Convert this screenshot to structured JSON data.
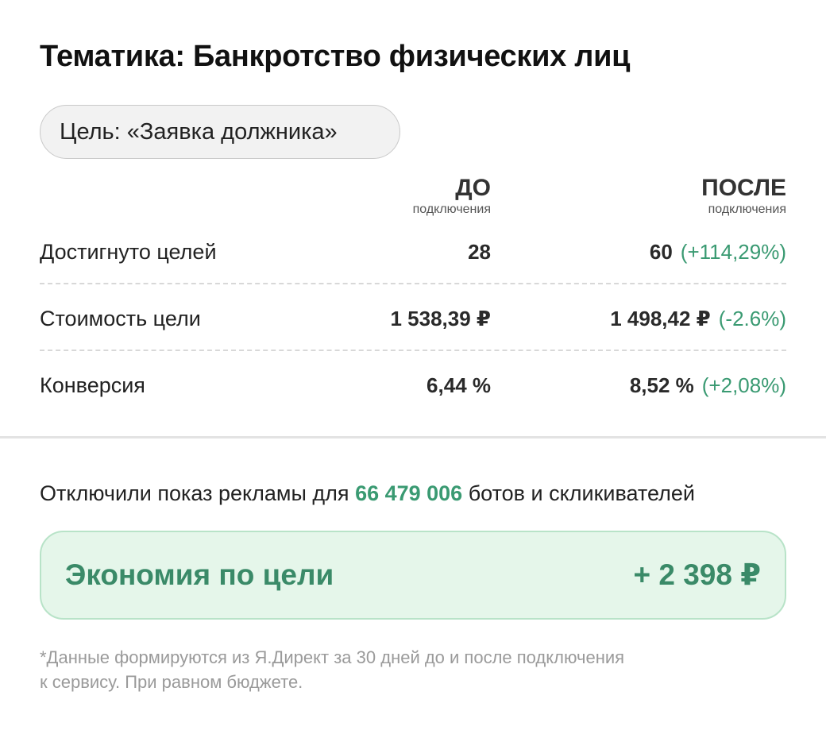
{
  "header": {
    "title": "Тематика: Банкротство физических лиц"
  },
  "goal": {
    "label": "Цель: «Заявка должника»"
  },
  "columns": {
    "before": {
      "title": "ДО",
      "subtitle": "подключения"
    },
    "after": {
      "title": "ПОСЛЕ",
      "subtitle": "подключения"
    }
  },
  "rows": [
    {
      "label": "Достигнуто целей",
      "before": "28",
      "after": "60",
      "delta": "(+114,29%)"
    },
    {
      "label": "Стоимость цели",
      "before": "1 538,39 ₽",
      "after": "1 498,42 ₽",
      "delta": "(-2.6%)"
    },
    {
      "label": "Конверсия",
      "before": "6,44 %",
      "after": "8,52 %",
      "delta": "(+2,08%)"
    }
  ],
  "bots": {
    "prefix": "Отключили показ рекламы для",
    "count": "66 479 006",
    "suffix": "ботов и скликивателей"
  },
  "savings": {
    "label": "Экономия по цели",
    "amount": "+ 2 398 ₽"
  },
  "footnote": {
    "line1": "*Данные формируются из Я.Директ за 30 дней до и после подключения",
    "line2": "к сервису. При равном бюджете."
  },
  "colors": {
    "accent_green": "#3a9a72",
    "savings_bg": "#e5f6ea",
    "savings_border": "#b8e3c8"
  }
}
